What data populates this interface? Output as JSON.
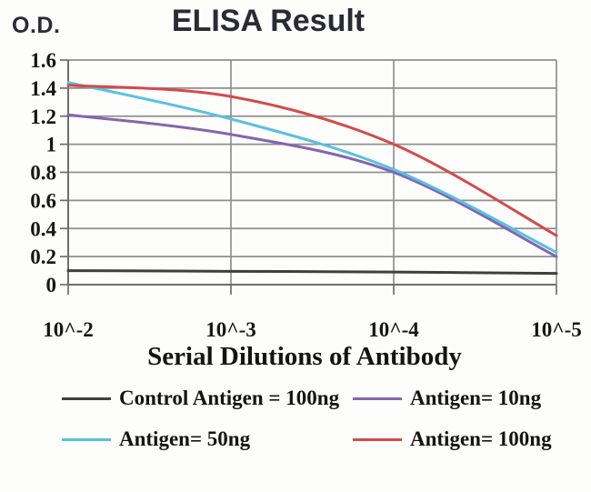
{
  "chart_data": {
    "type": "line",
    "title": "ELISA Result",
    "ylabel": "O.D.",
    "xlabel": "Serial Dilutions of Antibody",
    "categories": [
      "10^-2",
      "10^-3",
      "10^-4",
      "10^-5"
    ],
    "ylim": [
      0,
      1.6
    ],
    "yticks": [
      1.6,
      1.4,
      1.2,
      1,
      0.8,
      0.6,
      0.4,
      0.2,
      0
    ],
    "ytick_labels": [
      "1.6",
      "1.4",
      "1.2",
      "1",
      "0.8",
      "0.6",
      "0.4",
      "0.2",
      "0"
    ],
    "grid": true,
    "legend_position": "bottom",
    "series": [
      {
        "name": "Control Antigen = 100ng",
        "color": "#3f3f3f",
        "values": [
          0.1,
          0.095,
          0.09,
          0.08
        ]
      },
      {
        "name": "Antigen= 10ng",
        "color": "#8465ac",
        "values": [
          1.21,
          1.07,
          0.8,
          0.2
        ]
      },
      {
        "name": "Antigen= 50ng",
        "color": "#58c0e4",
        "values": [
          1.44,
          1.18,
          0.82,
          0.23
        ]
      },
      {
        "name": "Antigen= 100ng",
        "color": "#d44a4a",
        "values": [
          1.42,
          1.34,
          1.0,
          0.35
        ]
      }
    ]
  },
  "colors": {
    "grid": "#8f8f8f",
    "axis": "#6e6e6e",
    "background": "#fdfdfb",
    "title_text": "#2b2b33",
    "label_text": "#141414"
  }
}
